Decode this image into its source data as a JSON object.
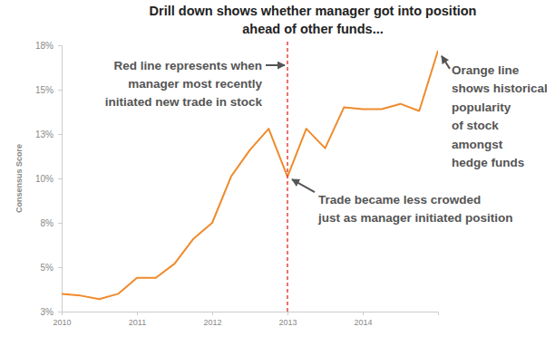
{
  "chart_data": {
    "type": "line",
    "title": [
      "Drill down shows whether manager got into position",
      "ahead of other funds..."
    ],
    "y_label": "Consensus Score",
    "x": [
      2010,
      2010.25,
      2010.5,
      2010.75,
      2011,
      2011.25,
      2011.5,
      2011.75,
      2012,
      2012.25,
      2012.5,
      2012.75,
      2013,
      2013.25,
      2013.5,
      2013.75,
      2014,
      2014.25,
      2014.5,
      2014.75,
      2015
    ],
    "values": [
      3.5,
      3.4,
      3.2,
      3.5,
      4.4,
      4.4,
      5.2,
      6.6,
      7.5,
      10.1,
      11.6,
      12.8,
      10.1,
      12.8,
      11.7,
      14.0,
      13.9,
      13.9,
      14.2,
      13.8,
      17.2
    ],
    "color": "#ef8b2c",
    "xlim": [
      2010,
      2015
    ],
    "xticks": [
      2010,
      2011,
      2012,
      2013,
      2014
    ],
    "ylim": [
      2.5,
      17.5
    ],
    "yticks": [
      {
        "value": 2.5,
        "label": "3%"
      },
      {
        "value": 5,
        "label": "5%"
      },
      {
        "value": 7.5,
        "label": "8%"
      },
      {
        "value": 10,
        "label": "10%"
      },
      {
        "value": 12.5,
        "label": "13%"
      },
      {
        "value": 15,
        "label": "15%"
      },
      {
        "value": 17.5,
        "label": "18%"
      }
    ],
    "grid": false,
    "annotations": [
      {
        "text": [
          "Red line represents when",
          "manager most recently",
          "initiated new trade in stock"
        ],
        "x": 2013,
        "color": "#e8443a",
        "line_style": "dashed"
      },
      {
        "text": [
          "Trade became less crowded",
          "just as manager initiated position"
        ],
        "x": 2013
      },
      {
        "text": [
          "Orange line",
          "shows historical",
          "popularity",
          "of stock",
          "amongst",
          "hedge funds"
        ],
        "x": 2015
      }
    ]
  }
}
